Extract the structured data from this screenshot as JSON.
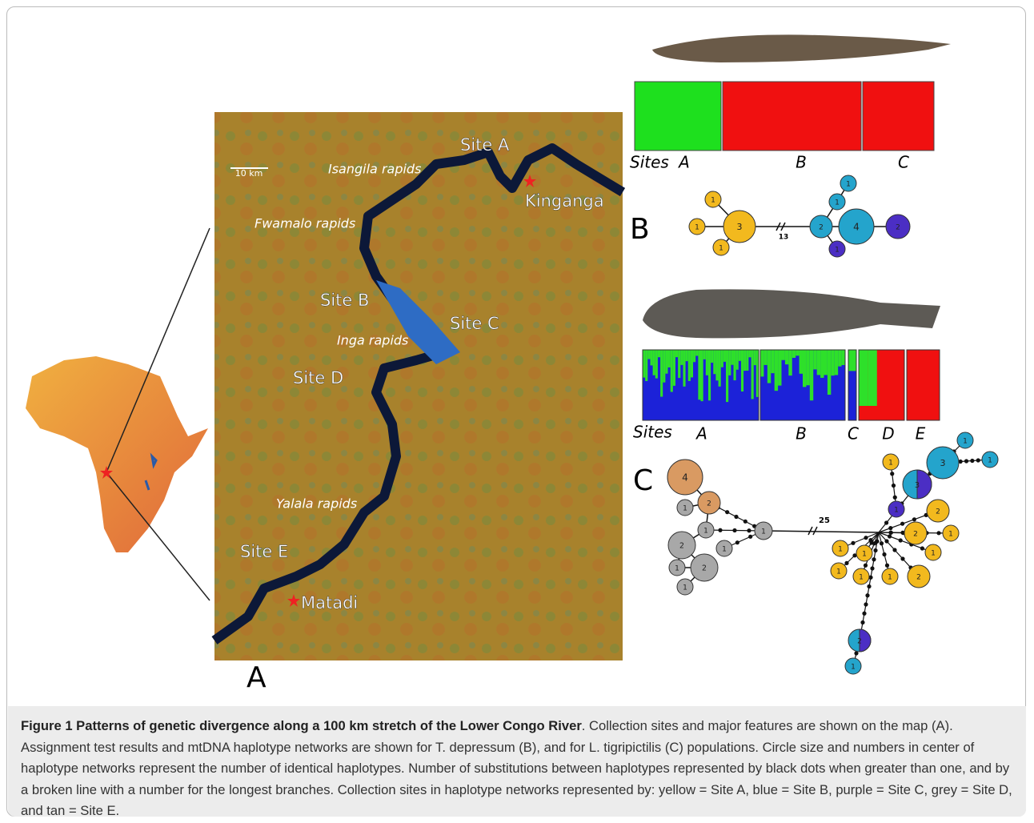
{
  "figure": {
    "panel_a": {
      "scale": "10 km",
      "labels": [
        "Site A",
        "Isangila rapids",
        "Kinganga",
        "Fwamalo rapids",
        "Site B",
        "Site C",
        "Inga rapids",
        "Site D",
        "Yalala rapids",
        "Site E",
        "Matadi"
      ],
      "letter": "A"
    },
    "panel_b": {
      "sites_label": "Sites",
      "sites": [
        "A",
        "B",
        "C"
      ],
      "letter": "B",
      "nodes": [
        1,
        1,
        1,
        3,
        2,
        4,
        1,
        1,
        1,
        2
      ],
      "branch": 13
    },
    "panel_c": {
      "sites_label": "Sites",
      "sites": [
        "A",
        "B",
        "C",
        "D",
        "E"
      ],
      "letter": "C",
      "nodes": [
        4,
        2,
        1,
        1,
        2,
        1,
        1,
        2,
        1,
        1,
        3,
        1,
        1,
        3,
        1,
        1,
        2,
        2,
        1,
        1,
        1,
        1,
        1,
        1,
        2,
        1,
        2,
        1
      ],
      "branch": 25
    }
  },
  "caption": {
    "bold": "Figure 1 Patterns of genetic divergence along a 100 km stretch of the Lower Congo River",
    "text": ". Collection sites and major features are shown on the map (A). Assignment test results and mtDNA haplotype networks are shown for T. depressum (B), and for L. tigripictilis (C) populations. Circle size and numbers in center of haplotype networks represent the number of identical haplotypes. Number of substitutions between haplotypes represented by black dots when greater than one, and by a broken line with a number for the longest branches. Collection sites in haplotype networks represented by: yellow = Site A, blue = Site B, purple = Site C, grey = Site D, and tan = Site E."
  }
}
